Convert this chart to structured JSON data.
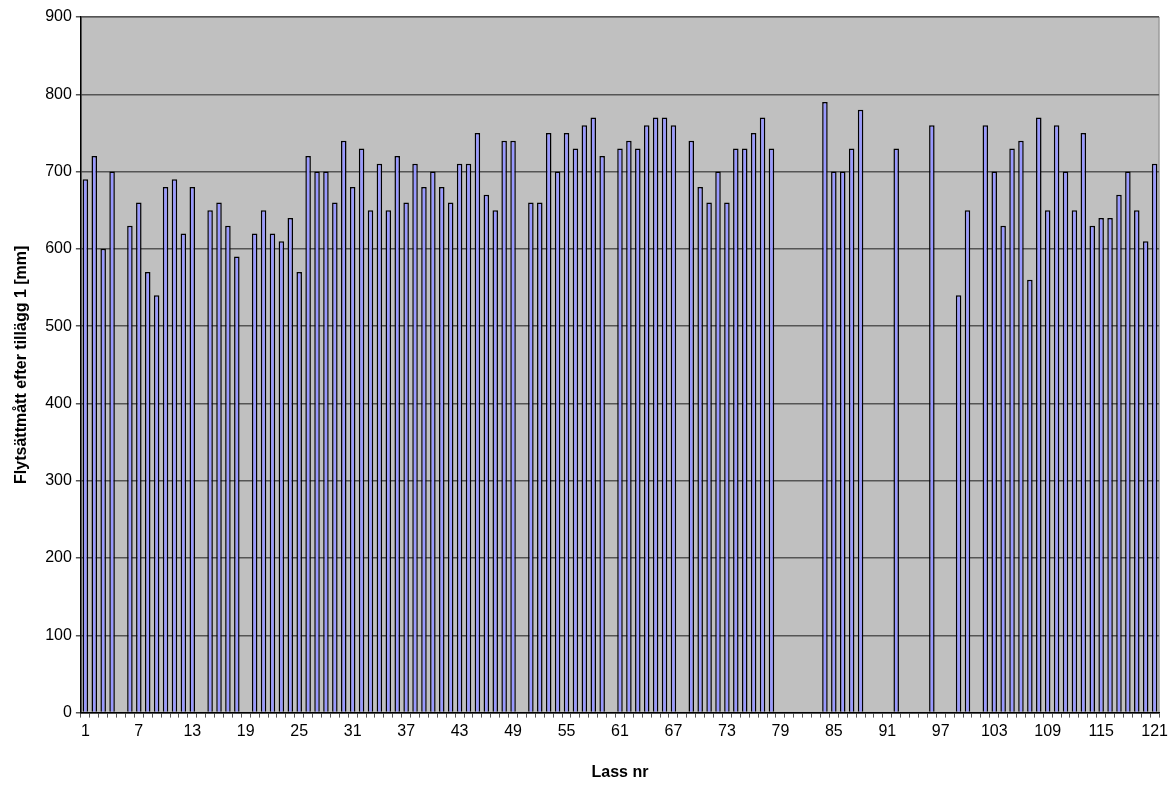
{
  "chart_data": {
    "type": "bar",
    "xlabel": "Lass nr",
    "ylabel": "Flytsättmått efter tillägg 1 [mm]",
    "categories": [
      "1",
      null,
      null,
      null,
      null,
      null,
      "7",
      null,
      null,
      null,
      null,
      null,
      "13",
      null,
      null,
      null,
      null,
      null,
      "19",
      null,
      null,
      null,
      null,
      null,
      "25",
      null,
      null,
      null,
      null,
      null,
      "31",
      null,
      null,
      null,
      null,
      null,
      "37",
      null,
      null,
      null,
      null,
      null,
      "43",
      null,
      null,
      null,
      null,
      null,
      "49",
      null,
      null,
      null,
      null,
      null,
      "55",
      null,
      null,
      null,
      null,
      null,
      "61",
      null,
      null,
      null,
      null,
      null,
      "67",
      null,
      null,
      null,
      null,
      null,
      "73",
      null,
      null,
      null,
      null,
      null,
      "79",
      null,
      null,
      null,
      null,
      null,
      "85",
      null,
      null,
      null,
      null,
      null,
      "91",
      null,
      null,
      null,
      null,
      null,
      "97",
      null,
      null,
      null,
      null,
      null,
      "103",
      null,
      null,
      null,
      null,
      null,
      "109",
      null,
      null,
      null,
      null,
      null,
      "115",
      null,
      null,
      null,
      null,
      null,
      "121"
    ],
    "values": [
      690,
      720,
      600,
      700,
      null,
      630,
      660,
      570,
      540,
      680,
      690,
      620,
      680,
      null,
      650,
      660,
      630,
      590,
      null,
      620,
      650,
      620,
      610,
      640,
      570,
      720,
      700,
      700,
      660,
      740,
      680,
      730,
      650,
      710,
      650,
      720,
      660,
      710,
      680,
      700,
      680,
      660,
      710,
      710,
      750,
      670,
      650,
      740,
      740,
      null,
      660,
      660,
      750,
      700,
      750,
      730,
      760,
      770,
      720,
      null,
      730,
      740,
      730,
      760,
      770,
      770,
      760,
      null,
      740,
      680,
      660,
      700,
      660,
      730,
      730,
      750,
      770,
      730,
      null,
      null,
      null,
      null,
      null,
      790,
      700,
      700,
      730,
      780,
      null,
      null,
      null,
      730,
      null,
      null,
      null,
      760,
      null,
      null,
      540,
      650,
      null,
      760,
      700,
      630,
      730,
      740,
      560,
      770,
      650,
      760,
      700,
      650,
      750,
      630,
      640,
      640,
      670,
      700,
      650,
      610,
      710
    ],
    "color": "#9999ff",
    "ylim": [
      0,
      900
    ],
    "yticks": [
      0,
      100,
      200,
      300,
      400,
      500,
      600,
      700,
      800,
      900
    ],
    "grid": "y",
    "legend": false
  }
}
